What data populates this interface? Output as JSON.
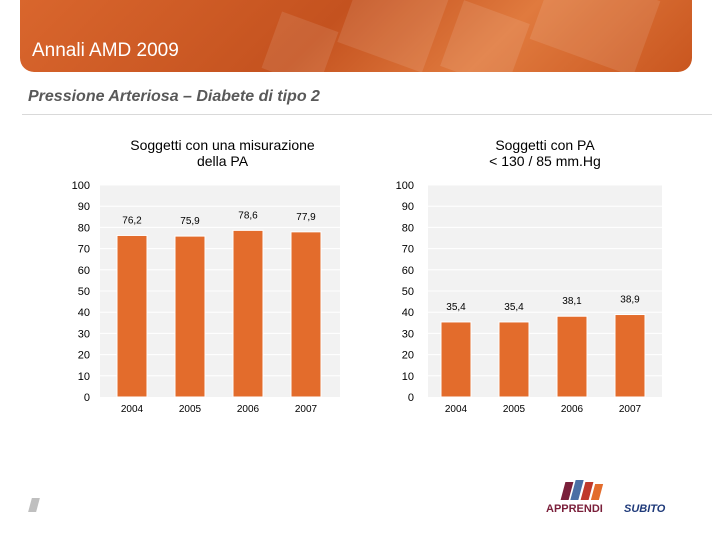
{
  "header": {
    "title": "Annali AMD 2009",
    "subtitle": "Pressione Arteriosa – Diabete di tipo 2"
  },
  "chart_data": [
    {
      "type": "bar",
      "title": "Soggetti con una misurazione\ndella PA",
      "categories": [
        "2004",
        "2005",
        "2006",
        "2007"
      ],
      "values": [
        76.2,
        75.9,
        78.6,
        77.9
      ],
      "value_labels": [
        "76,2",
        "75,9",
        "78,6",
        "77,9"
      ],
      "y_ticks": [
        "0",
        "10",
        "20",
        "30",
        "40",
        "50",
        "60",
        "70",
        "80",
        "90",
        "100"
      ],
      "ylim": [
        0,
        100
      ],
      "grid": true,
      "bar_color": "#e36c2c"
    },
    {
      "type": "bar",
      "title": "Soggetti con PA\n< 130 / 85 mm.Hg",
      "categories": [
        "2004",
        "2005",
        "2006",
        "2007"
      ],
      "values": [
        35.4,
        35.4,
        38.1,
        38.9
      ],
      "value_labels": [
        "35,4",
        "35,4",
        "38,1",
        "38,9"
      ],
      "y_ticks": [
        "0",
        "10",
        "20",
        "30",
        "40",
        "50",
        "60",
        "70",
        "80",
        "90",
        "100"
      ],
      "ylim": [
        0,
        100
      ],
      "grid": true,
      "bar_color": "#e36c2c"
    }
  ],
  "logos": {
    "apprendi": "APPRENDI",
    "subito": "SUBITO"
  }
}
